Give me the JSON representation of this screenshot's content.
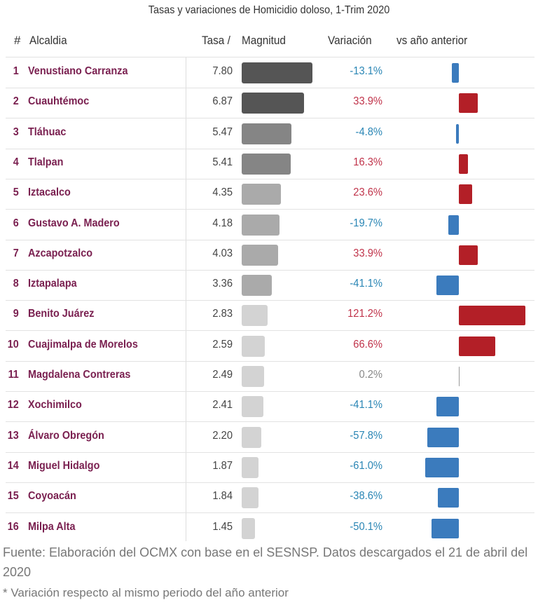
{
  "chart_data": {
    "type": "table",
    "title": "Tasas y variaciones de Homicidio doloso, 1-Trim 2020",
    "headers": {
      "num": "#",
      "name": "Alcaldia",
      "tasa": "Tasa /",
      "magnitud": "Magnitud",
      "variacion": "Variación",
      "vs": "vs año anterior"
    },
    "rows": [
      {
        "rank": "1",
        "name": "Venustiano Carranza",
        "tasa": 7.8,
        "tasa_label": "7.80",
        "var": -13.1,
        "var_label": "-13.1%"
      },
      {
        "rank": "2",
        "name": "Cuauhtémoc",
        "tasa": 6.87,
        "tasa_label": "6.87",
        "var": 33.9,
        "var_label": "33.9%"
      },
      {
        "rank": "3",
        "name": "Tláhuac",
        "tasa": 5.47,
        "tasa_label": "5.47",
        "var": -4.8,
        "var_label": "-4.8%"
      },
      {
        "rank": "4",
        "name": "Tlalpan",
        "tasa": 5.41,
        "tasa_label": "5.41",
        "var": 16.3,
        "var_label": "16.3%"
      },
      {
        "rank": "5",
        "name": "Iztacalco",
        "tasa": 4.35,
        "tasa_label": "4.35",
        "var": 23.6,
        "var_label": "23.6%"
      },
      {
        "rank": "6",
        "name": "Gustavo A. Madero",
        "tasa": 4.18,
        "tasa_label": "4.18",
        "var": -19.7,
        "var_label": "-19.7%"
      },
      {
        "rank": "7",
        "name": "Azcapotzalco",
        "tasa": 4.03,
        "tasa_label": "4.03",
        "var": 33.9,
        "var_label": "33.9%"
      },
      {
        "rank": "8",
        "name": "Iztapalapa",
        "tasa": 3.36,
        "tasa_label": "3.36",
        "var": -41.1,
        "var_label": "-41.1%"
      },
      {
        "rank": "9",
        "name": "Benito Juárez",
        "tasa": 2.83,
        "tasa_label": "2.83",
        "var": 121.2,
        "var_label": "121.2%"
      },
      {
        "rank": "10",
        "name": "Cuajimalpa de Morelos",
        "tasa": 2.59,
        "tasa_label": "2.59",
        "var": 66.6,
        "var_label": "66.6%"
      },
      {
        "rank": "11",
        "name": "Magdalena Contreras",
        "tasa": 2.49,
        "tasa_label": "2.49",
        "var": 0.2,
        "var_label": "0.2%"
      },
      {
        "rank": "12",
        "name": "Xochimilco",
        "tasa": 2.41,
        "tasa_label": "2.41",
        "var": -41.1,
        "var_label": "-41.1%"
      },
      {
        "rank": "13",
        "name": "Álvaro Obregón",
        "tasa": 2.2,
        "tasa_label": "2.20",
        "var": -57.8,
        "var_label": "-57.8%"
      },
      {
        "rank": "14",
        "name": "Miguel Hidalgo",
        "tasa": 1.87,
        "tasa_label": "1.87",
        "var": -61.0,
        "var_label": "-61.0%"
      },
      {
        "rank": "15",
        "name": "Coyoacán",
        "tasa": 1.84,
        "tasa_label": "1.84",
        "var": -38.6,
        "var_label": "-38.6%"
      },
      {
        "rank": "16",
        "name": "Milpa Alta",
        "tasa": 1.45,
        "tasa_label": "1.45",
        "var": -50.1,
        "var_label": "-50.1%"
      }
    ],
    "colors": {
      "positive": "#b31f27",
      "negative": "#3b7bbd",
      "zero": "#999999",
      "pos_text": "#c0334a",
      "neg_text": "#2a86b5"
    }
  },
  "footer": {
    "source": "Fuente: Elaboración del OCMX con base en el SESNSP. Datos descargados el 21 de abril del 2020",
    "note": "* Variación respecto al mismo periodo del año anterior"
  }
}
